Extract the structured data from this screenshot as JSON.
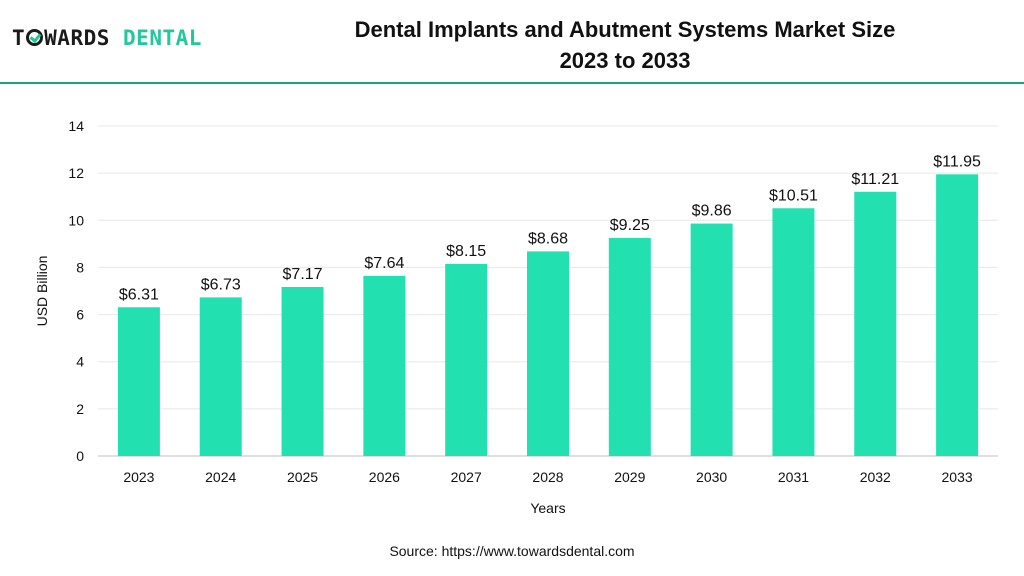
{
  "header": {
    "logo_part1": "T",
    "logo_part2": "WARDS",
    "logo_part3": "DENTAL",
    "title_line1": "Dental Implants and Abutment Systems Market Size",
    "title_line2": "2023 to 2033"
  },
  "footer": {
    "source": "Source: https://www.towardsdental.com"
  },
  "colors": {
    "bar": "#23e0b0",
    "accent": "#1f9e86",
    "logo_green": "#22c79b",
    "grid": "#e8e8e8"
  },
  "chart_data": {
    "type": "bar",
    "categories": [
      "2023",
      "2024",
      "2025",
      "2026",
      "2027",
      "2028",
      "2029",
      "2030",
      "2031",
      "2032",
      "2033"
    ],
    "values": [
      6.31,
      6.73,
      7.17,
      7.64,
      8.15,
      8.68,
      9.25,
      9.86,
      10.51,
      11.21,
      11.95
    ],
    "data_labels": [
      "$6.31",
      "$6.73",
      "$7.17",
      "$7.64",
      "$8.15",
      "$8.68",
      "$9.25",
      "$9.86",
      "$10.51",
      "$11.21",
      "$11.95"
    ],
    "xlabel": "Years",
    "ylabel": "USD Billion",
    "ylim": [
      0,
      14
    ],
    "yticks": [
      0,
      2,
      4,
      6,
      8,
      10,
      12,
      14
    ],
    "grid": true,
    "legend": "none"
  }
}
